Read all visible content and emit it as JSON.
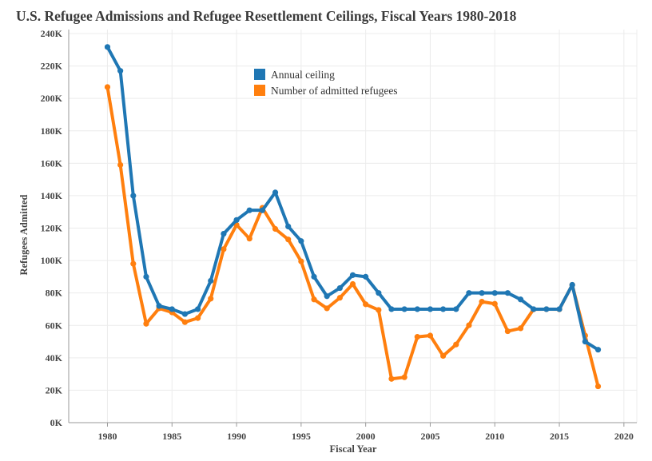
{
  "chart_data": {
    "type": "line",
    "title": "U.S. Refugee Admissions and Refugee Resettlement Ceilings, Fiscal Years 1980-2018",
    "xlabel": "Fiscal Year",
    "ylabel": "Refugees Admitted",
    "xlim": [
      1977,
      2021
    ],
    "ylim": [
      0,
      240000
    ],
    "x_ticks": [
      {
        "value": 1980,
        "label": "1980"
      },
      {
        "value": 1985,
        "label": "1985"
      },
      {
        "value": 1990,
        "label": "1990"
      },
      {
        "value": 1995,
        "label": "1995"
      },
      {
        "value": 2000,
        "label": "2000"
      },
      {
        "value": 2005,
        "label": "2005"
      },
      {
        "value": 2010,
        "label": "2010"
      },
      {
        "value": 2015,
        "label": "2015"
      },
      {
        "value": 2020,
        "label": "2020"
      }
    ],
    "y_ticks": [
      {
        "value": 0,
        "label": "0K"
      },
      {
        "value": 20000,
        "label": "20K"
      },
      {
        "value": 40000,
        "label": "40K"
      },
      {
        "value": 60000,
        "label": "60K"
      },
      {
        "value": 80000,
        "label": "80K"
      },
      {
        "value": 100000,
        "label": "100K"
      },
      {
        "value": 120000,
        "label": "120K"
      },
      {
        "value": 140000,
        "label": "140K"
      },
      {
        "value": 160000,
        "label": "160K"
      },
      {
        "value": 180000,
        "label": "180K"
      },
      {
        "value": 200000,
        "label": "200K"
      },
      {
        "value": 220000,
        "label": "220K"
      },
      {
        "value": 240000,
        "label": "240K"
      }
    ],
    "grid": true,
    "legend_position": "top-center",
    "x": [
      1980,
      1981,
      1982,
      1983,
      1984,
      1985,
      1986,
      1987,
      1988,
      1989,
      1990,
      1991,
      1992,
      1993,
      1994,
      1995,
      1996,
      1997,
      1998,
      1999,
      2000,
      2001,
      2002,
      2003,
      2004,
      2005,
      2006,
      2007,
      2008,
      2009,
      2010,
      2011,
      2012,
      2013,
      2014,
      2015,
      2016,
      2017,
      2018
    ],
    "series": [
      {
        "name": "Annual ceiling",
        "color": "#1f77b4",
        "values": [
          231700,
          217000,
          140000,
          90000,
          72000,
          70000,
          67000,
          70000,
          87500,
          116500,
          125000,
          131000,
          131000,
          142000,
          121000,
          112000,
          90000,
          78000,
          83000,
          91000,
          90000,
          80000,
          70000,
          70000,
          70000,
          70000,
          70000,
          70000,
          80000,
          80000,
          80000,
          80000,
          76000,
          70000,
          70000,
          70000,
          85000,
          50000,
          45000
        ]
      },
      {
        "name": "Number of admitted refugees",
        "color": "#ff7f0e",
        "values": [
          207000,
          159000,
          98000,
          61000,
          70500,
          68000,
          62000,
          64500,
          76500,
          107000,
          122000,
          113500,
          132500,
          119500,
          113000,
          99500,
          76000,
          70500,
          77000,
          85500,
          73000,
          69500,
          27000,
          28000,
          52900,
          53700,
          41200,
          48200,
          60100,
          74600,
          73300,
          56400,
          58200,
          69900,
          69987,
          69933,
          84989,
          53700,
          22400
        ]
      }
    ]
  }
}
